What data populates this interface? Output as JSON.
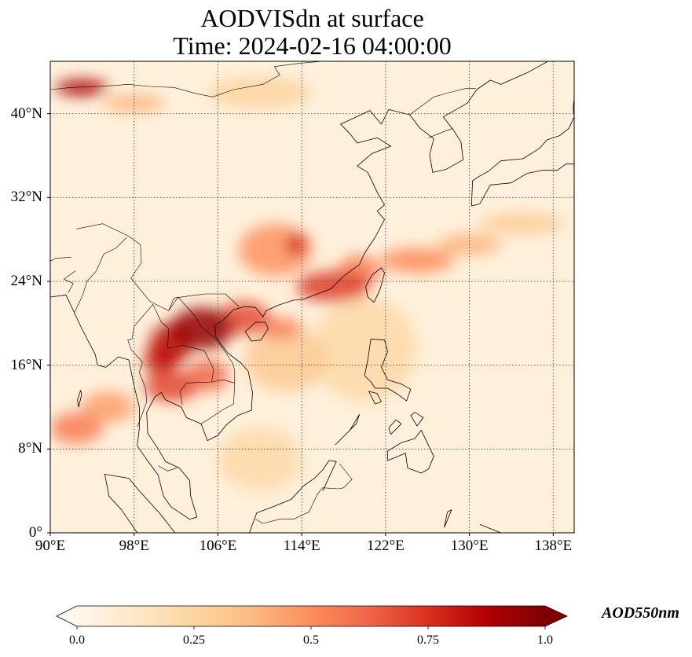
{
  "title_line1": "AODVISdn at surface",
  "title_line2": "Time: 2024-02-16 04:00:00",
  "map": {
    "projection": "PlateCarree",
    "lon_range": [
      90,
      140
    ],
    "lat_range": [
      0,
      45
    ],
    "xticks": [
      {
        "lon": 90,
        "label": "90°E"
      },
      {
        "lon": 98,
        "label": "98°E"
      },
      {
        "lon": 106,
        "label": "106°E"
      },
      {
        "lon": 114,
        "label": "114°E"
      },
      {
        "lon": 122,
        "label": "122°E"
      },
      {
        "lon": 130,
        "label": "130°E"
      },
      {
        "lon": 138,
        "label": "138°E"
      }
    ],
    "yticks": [
      {
        "lat": 0,
        "label": "0°"
      },
      {
        "lat": 8,
        "label": "8°N"
      },
      {
        "lat": 16,
        "label": "16°N"
      },
      {
        "lat": 24,
        "label": "24°N"
      },
      {
        "lat": 32,
        "label": "32°N"
      },
      {
        "lat": 40,
        "label": "40°N"
      }
    ],
    "gridlines": true,
    "gridline_style": "dotted"
  },
  "colorbar": {
    "label": "AOD550nm",
    "colormap": "OrRd",
    "range": [
      0.0,
      1.0
    ],
    "extend": "both",
    "ticks": [
      {
        "value": 0.0,
        "label": "0.0"
      },
      {
        "value": 0.25,
        "label": "0.25"
      },
      {
        "value": 0.5,
        "label": "0.5"
      },
      {
        "value": 0.75,
        "label": "0.75"
      },
      {
        "value": 1.0,
        "label": "1.0"
      }
    ],
    "colors": [
      "#fff7ec",
      "#fee8c8",
      "#fdd49e",
      "#fdbb84",
      "#fc8d59",
      "#ef6548",
      "#d7301f",
      "#b30000",
      "#7f0000"
    ]
  },
  "aod_field": {
    "background": 0.06,
    "plumes": [
      {
        "lon": 104.5,
        "lat": 19.5,
        "rlon": 3.0,
        "rlat": 2.0,
        "value": 0.95
      },
      {
        "lon": 101.5,
        "lat": 18.0,
        "rlon": 2.0,
        "rlat": 2.0,
        "value": 0.85
      },
      {
        "lon": 100.5,
        "lat": 16.5,
        "rlon": 1.6,
        "rlat": 1.4,
        "value": 0.8
      },
      {
        "lon": 101.5,
        "lat": 14.0,
        "rlon": 2.5,
        "rlat": 1.5,
        "value": 0.7
      },
      {
        "lon": 105.0,
        "lat": 15.0,
        "rlon": 2.0,
        "rlat": 1.5,
        "value": 0.62
      },
      {
        "lon": 108.5,
        "lat": 20.5,
        "rlon": 2.5,
        "rlat": 1.6,
        "value": 0.68
      },
      {
        "lon": 112.0,
        "lat": 19.5,
        "rlon": 2.0,
        "rlat": 1.0,
        "value": 0.55
      },
      {
        "lon": 117.0,
        "lat": 23.5,
        "rlon": 3.5,
        "rlat": 1.5,
        "value": 0.72
      },
      {
        "lon": 111.5,
        "lat": 27.0,
        "rlon": 3.5,
        "rlat": 2.5,
        "value": 0.48
      },
      {
        "lon": 113.5,
        "lat": 27.5,
        "rlon": 1.0,
        "rlat": 1.0,
        "value": 0.8
      },
      {
        "lon": 119.5,
        "lat": 25.0,
        "rlon": 2.0,
        "rlat": 1.5,
        "value": 0.55
      },
      {
        "lon": 125.0,
        "lat": 26.0,
        "rlon": 3.5,
        "rlat": 1.2,
        "value": 0.5
      },
      {
        "lon": 130.0,
        "lat": 27.5,
        "rlon": 3.0,
        "rlat": 1.0,
        "value": 0.4
      },
      {
        "lon": 135.0,
        "lat": 29.5,
        "rlon": 4.0,
        "rlat": 1.0,
        "value": 0.3
      },
      {
        "lon": 92.5,
        "lat": 10.0,
        "rlon": 2.5,
        "rlat": 1.5,
        "value": 0.55
      },
      {
        "lon": 95.5,
        "lat": 12.0,
        "rlon": 2.5,
        "rlat": 1.5,
        "value": 0.45
      },
      {
        "lon": 93.0,
        "lat": 42.5,
        "rlon": 2.5,
        "rlat": 0.8,
        "value": 0.9
      },
      {
        "lon": 98.0,
        "lat": 41.0,
        "rlon": 3.0,
        "rlat": 0.8,
        "value": 0.4
      },
      {
        "lon": 110.0,
        "lat": 42.0,
        "rlon": 5.0,
        "rlat": 1.5,
        "value": 0.25
      },
      {
        "lon": 112.5,
        "lat": 16.5,
        "rlon": 4.0,
        "rlat": 3.0,
        "value": 0.3
      },
      {
        "lon": 120.0,
        "lat": 17.5,
        "rlon": 5.0,
        "rlat": 5.0,
        "value": 0.22
      },
      {
        "lon": 110.0,
        "lat": 7.0,
        "rlon": 4.0,
        "rlat": 3.0,
        "value": 0.22
      }
    ]
  }
}
